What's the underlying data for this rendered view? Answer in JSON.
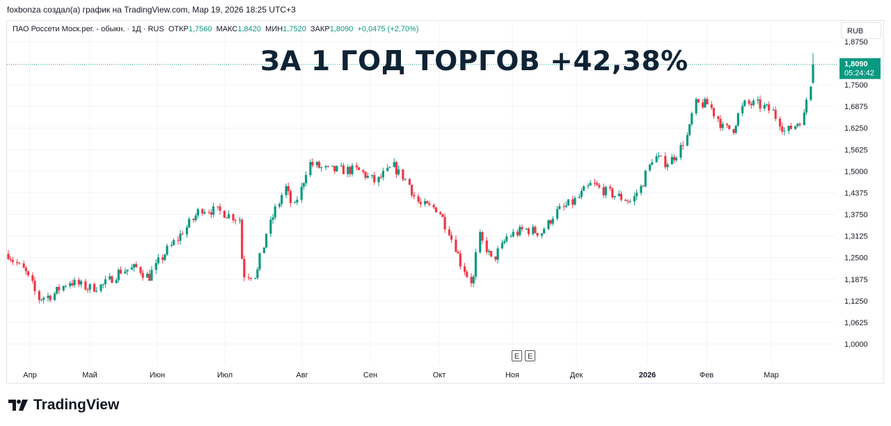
{
  "credit": "foxbonza создал(а) график на TradingView.com, Мар 19, 2026 18:25 UTC+3",
  "legend": {
    "symbol": "ПАО Россети Моск.рег. - обыкн. · 1Д · RUS",
    "open_label": "ОТКР",
    "open": "1,7560",
    "high_label": "МАКС",
    "high": "1,8420",
    "low_label": "МИН",
    "low": "1,7520",
    "close_label": "ЗАКР",
    "close": "1,8090",
    "change": "+0,0475 (+2,70%)"
  },
  "currency_button": "RUB",
  "headline": "ЗА 1 ГОД ТОРГОВ +42,38%",
  "last_price_label": "1,8090",
  "countdown": "05:24:42",
  "event_markers": [
    "E",
    "E"
  ],
  "logo_text": "TradingView",
  "colors": {
    "up": "#089981",
    "down": "#f23645",
    "grid": "#f0f3fa",
    "headline": "#0f2335"
  },
  "chart_data": {
    "type": "candlestick",
    "interval": "1D",
    "y_ticks": [
      "1,0000",
      "1,0625",
      "1,1250",
      "1,1875",
      "1,2500",
      "1,3125",
      "1,3750",
      "1,4375",
      "1,5000",
      "1,5625",
      "1,6250",
      "1,6875",
      "1,7500",
      "1,8750"
    ],
    "ylim": [
      1.0,
      1.875
    ],
    "x_ticks": [
      "Апр",
      "Май",
      "Июн",
      "Июл",
      "Авг",
      "Сен",
      "Окт",
      "Ноя",
      "Дек",
      "2026",
      "Фев",
      "Мар"
    ],
    "date_range": [
      "2025-03-19",
      "2026-03-19"
    ],
    "approx_close": [
      [
        "2025-03-19",
        1.261
      ],
      [
        "2025-03-28",
        1.201
      ],
      [
        "2025-04-02",
        1.131
      ],
      [
        "2025-04-08",
        1.141
      ],
      [
        "2025-04-16",
        1.181
      ],
      [
        "2025-04-25",
        1.161
      ],
      [
        "2025-05-02",
        1.171
      ],
      [
        "2025-05-09",
        1.211
      ],
      [
        "2025-05-17",
        1.221
      ],
      [
        "2025-05-22",
        1.191
      ],
      [
        "2025-05-28",
        1.251
      ],
      [
        "2025-06-05",
        1.312
      ],
      [
        "2025-06-15",
        1.392
      ],
      [
        "2025-06-24",
        1.382
      ],
      [
        "2025-07-02",
        1.362
      ],
      [
        "2025-07-04",
        1.201
      ],
      [
        "2025-07-10",
        1.201
      ],
      [
        "2025-07-15",
        1.332
      ],
      [
        "2025-07-23",
        1.452
      ],
      [
        "2025-07-27",
        1.392
      ],
      [
        "2025-08-03",
        1.523
      ],
      [
        "2025-08-11",
        1.503
      ],
      [
        "2025-08-17",
        1.503
      ],
      [
        "2025-08-25",
        1.503
      ],
      [
        "2025-09-02",
        1.469
      ],
      [
        "2025-09-10",
        1.513
      ],
      [
        "2025-09-16",
        1.473
      ],
      [
        "2025-09-22",
        1.402
      ],
      [
        "2025-09-30",
        1.392
      ],
      [
        "2025-10-05",
        1.332
      ],
      [
        "2025-10-11",
        1.231
      ],
      [
        "2025-10-16",
        1.171
      ],
      [
        "2025-10-19",
        1.312
      ],
      [
        "2025-10-25",
        1.241
      ],
      [
        "2025-11-01",
        1.312
      ],
      [
        "2025-11-09",
        1.332
      ],
      [
        "2025-11-16",
        1.322
      ],
      [
        "2025-11-23",
        1.382
      ],
      [
        "2025-12-01",
        1.412
      ],
      [
        "2025-12-09",
        1.463
      ],
      [
        "2025-12-15",
        1.442
      ],
      [
        "2025-12-23",
        1.422
      ],
      [
        "2025-12-27",
        1.412
      ],
      [
        "2026-01-01",
        1.463
      ],
      [
        "2026-01-06",
        1.543
      ],
      [
        "2026-01-12",
        1.523
      ],
      [
        "2026-01-17",
        1.553
      ],
      [
        "2026-01-22",
        1.613
      ],
      [
        "2026-01-25",
        1.694
      ],
      [
        "2026-01-31",
        1.694
      ],
      [
        "2026-02-07",
        1.623
      ],
      [
        "2026-02-11",
        1.623
      ],
      [
        "2026-02-16",
        1.694
      ],
      [
        "2026-02-22",
        1.694
      ],
      [
        "2026-03-01",
        1.674
      ],
      [
        "2026-03-07",
        1.613
      ],
      [
        "2026-03-15",
        1.654
      ],
      [
        "2026-03-18",
        1.756
      ]
    ],
    "last_candle": {
      "date": "2026-03-19",
      "open": 1.756,
      "high": 1.842,
      "low": 1.752,
      "close": 1.809
    },
    "grid": true
  }
}
